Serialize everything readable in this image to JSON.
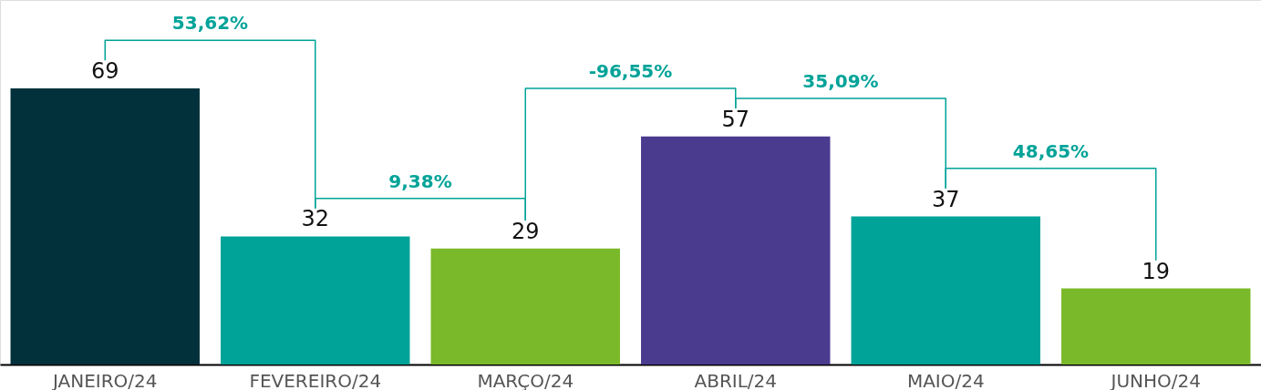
{
  "chart_data": {
    "type": "bar",
    "categories": [
      "JANEIRO/24",
      "FEVEREIRO/24",
      "MARÇO/24",
      "ABRIL/24",
      "MAIO/24",
      "JUNHO/24"
    ],
    "values": [
      69,
      32,
      29,
      57,
      37,
      19
    ],
    "colors": [
      "#02313c",
      "#00a398",
      "#7ab929",
      "#4b3b8f",
      "#00a398",
      "#7ab929"
    ],
    "data_labels": true,
    "annotations": [
      "53,62%",
      "9,38%",
      "-96,55%",
      "35,09%",
      "48,65%"
    ],
    "grid": false
  }
}
